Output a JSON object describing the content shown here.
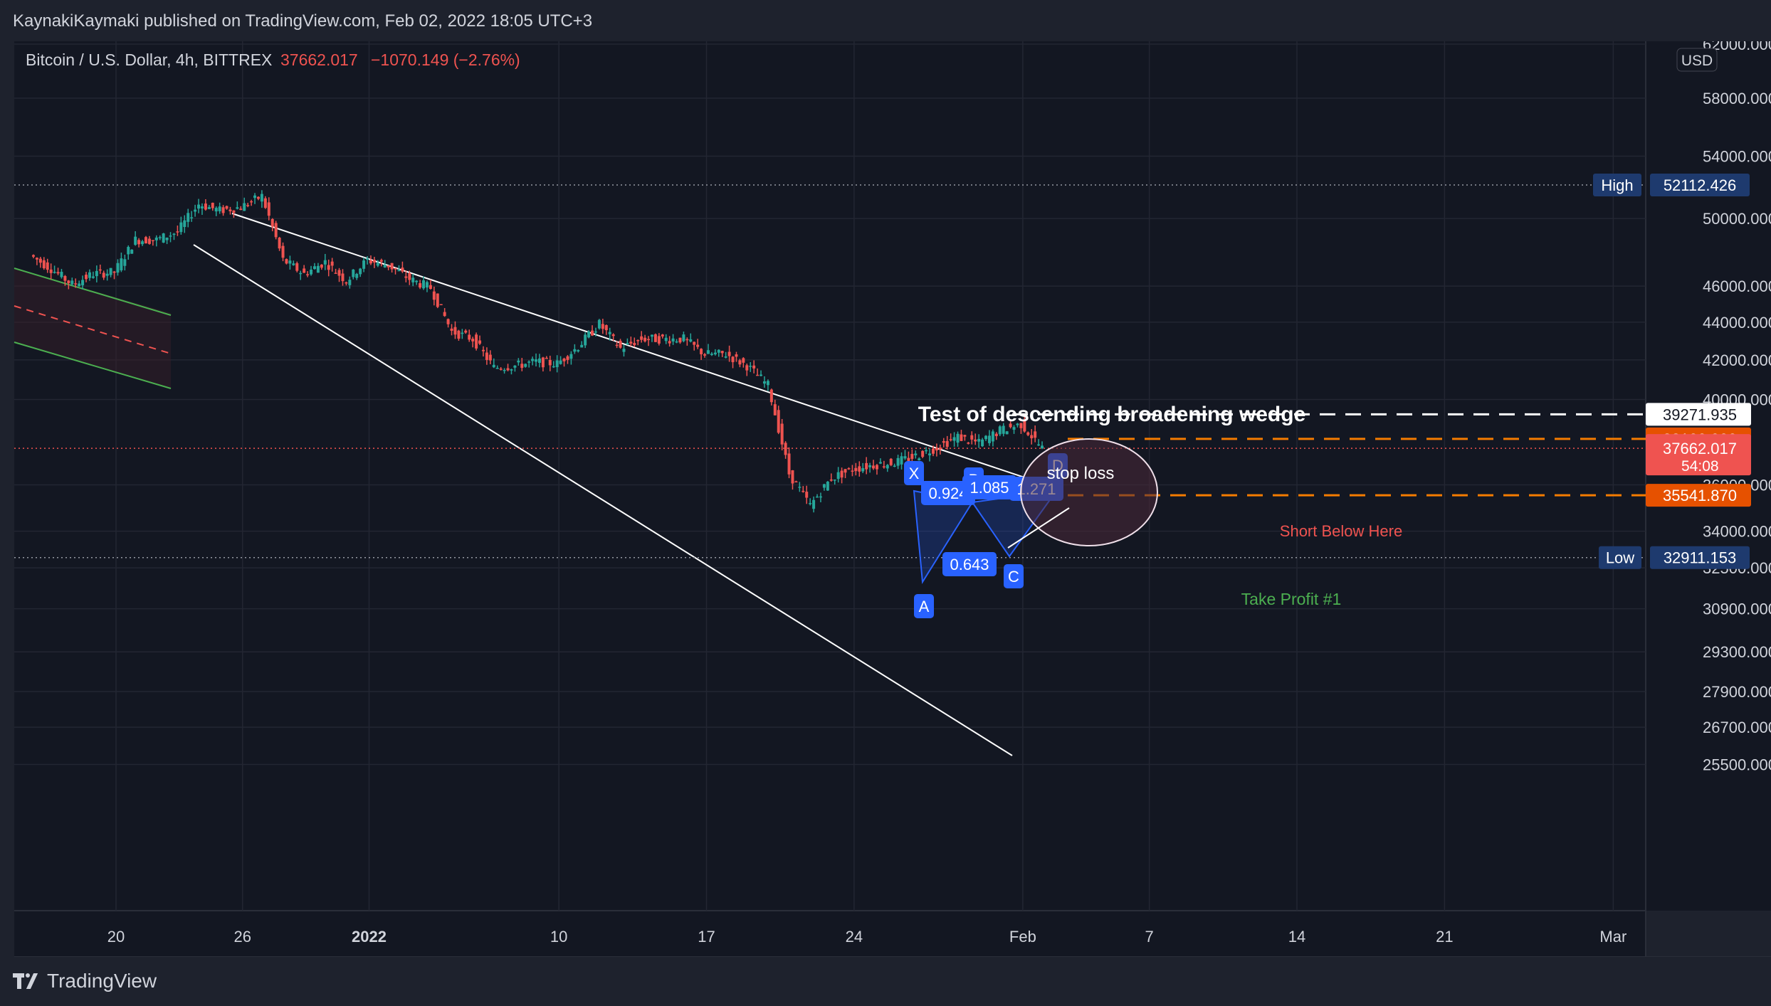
{
  "header": {
    "published": "KaynakiKaymaki published on TradingView.com, Feb 02, 2022 18:05 UTC+3"
  },
  "legend": {
    "symbol": "Bitcoin / U.S. Dollar, 4h, BITTREX",
    "price": "37662.017",
    "change": "−1070.149 (−2.76%)",
    "currency": "USD"
  },
  "footer": {
    "brand": "TradingView"
  },
  "colors": {
    "background": "#131722",
    "up": "#26a69a",
    "down": "#ef5350",
    "accent_blue": "#2962ff",
    "orange": "#f57c00",
    "text_green": "#4caf50",
    "text_red": "#ef5350"
  },
  "chart_data": {
    "type": "candlestick",
    "title": "Test of descending broadening wedge",
    "x_tick_labels": [
      "20",
      "26",
      "2022",
      "10",
      "17",
      "24",
      "Feb",
      "7",
      "14",
      "21",
      "Mar"
    ],
    "y_tick_labels": [
      "62000.000",
      "58000.000",
      "54000.000",
      "50000.000",
      "46000.000",
      "44000.000",
      "42000.000",
      "40000.000",
      "36000.000",
      "34000.000",
      "32500.000",
      "30900.000",
      "29300.000",
      "27900.000",
      "26700.000",
      "25500.000"
    ],
    "y_scale": "log",
    "ylim": [
      25000,
      63500
    ],
    "price_path": [
      [
        "2021-12-16",
        47800
      ],
      [
        "2021-12-17",
        47000
      ],
      [
        "2021-12-18",
        46100
      ],
      [
        "2021-12-19",
        46700
      ],
      [
        "2021-12-20",
        46800
      ],
      [
        "2021-12-21",
        48700
      ],
      [
        "2021-12-22",
        48700
      ],
      [
        "2021-12-23",
        49200
      ],
      [
        "2021-12-24",
        50900
      ],
      [
        "2021-12-25",
        50500
      ],
      [
        "2021-12-26",
        50700
      ],
      [
        "2021-12-27",
        51400
      ],
      [
        "2021-12-28",
        47500
      ],
      [
        "2021-12-29",
        46700
      ],
      [
        "2021-12-30",
        47400
      ],
      [
        "2021-12-31",
        46300
      ],
      [
        "2022-01-01",
        47500
      ],
      [
        "2022-01-02",
        47200
      ],
      [
        "2022-01-03",
        46400
      ],
      [
        "2022-01-04",
        45900
      ],
      [
        "2022-01-05",
        43500
      ],
      [
        "2022-01-06",
        43100
      ],
      [
        "2022-01-07",
        41600
      ],
      [
        "2022-01-08",
        41700
      ],
      [
        "2022-01-09",
        41900
      ],
      [
        "2022-01-10",
        41800
      ],
      [
        "2022-01-11",
        42700
      ],
      [
        "2022-01-12",
        43900
      ],
      [
        "2022-01-13",
        42600
      ],
      [
        "2022-01-14",
        43100
      ],
      [
        "2022-01-15",
        43100
      ],
      [
        "2022-01-16",
        43100
      ],
      [
        "2022-01-17",
        42300
      ],
      [
        "2022-01-18",
        42300
      ],
      [
        "2022-01-19",
        41700
      ],
      [
        "2022-01-20",
        40700
      ],
      [
        "2022-01-21",
        36500
      ],
      [
        "2022-01-22",
        35100
      ],
      [
        "2022-01-23",
        36300
      ],
      [
        "2022-01-24",
        36700
      ],
      [
        "2022-01-25",
        36900
      ],
      [
        "2022-01-26",
        37000
      ],
      [
        "2022-01-27",
        37300
      ],
      [
        "2022-01-28",
        37700
      ],
      [
        "2022-01-29",
        38200
      ],
      [
        "2022-01-30",
        37900
      ],
      [
        "2022-01-31",
        38500
      ],
      [
        "2022-02-01",
        38800
      ],
      [
        "2022-02-02",
        37662
      ]
    ],
    "horizontal_levels": [
      {
        "label": "High",
        "value": "52112.426",
        "style": "dotted",
        "color": "#9598a1"
      },
      {
        "label": "Low",
        "value": "32911.153",
        "style": "dotted",
        "color": "#9598a1"
      },
      {
        "label": "",
        "value": "39271.935",
        "style": "dashed",
        "color": "#ffffff"
      },
      {
        "label": "",
        "value": "38100.000",
        "style": "dashed",
        "color": "#f57c00"
      },
      {
        "label": "",
        "value": "35541.870",
        "style": "dashed",
        "color": "#f57c00"
      }
    ],
    "last_price": {
      "value": "37662.017",
      "countdown": "54:08"
    },
    "annotations": [
      {
        "text": "Test of descending broadening wedge",
        "color": "#ffffff"
      },
      {
        "text": "stop loss",
        "color": "#ffffff"
      },
      {
        "text": "Short Below Here",
        "color": "#ef5350"
      },
      {
        "text": "Take Profit #1",
        "color": "#4caf50"
      }
    ],
    "harmonic_pattern": {
      "points": [
        "X",
        "A",
        "B",
        "C",
        "D"
      ],
      "ratios": [
        "0.924",
        "1.085",
        "0.643",
        "1.271"
      ]
    },
    "channel": {
      "upper": "green",
      "mid": "red dashed",
      "lower": "green"
    },
    "wedge_lines": 2,
    "grid": true,
    "legend": "top-left"
  }
}
